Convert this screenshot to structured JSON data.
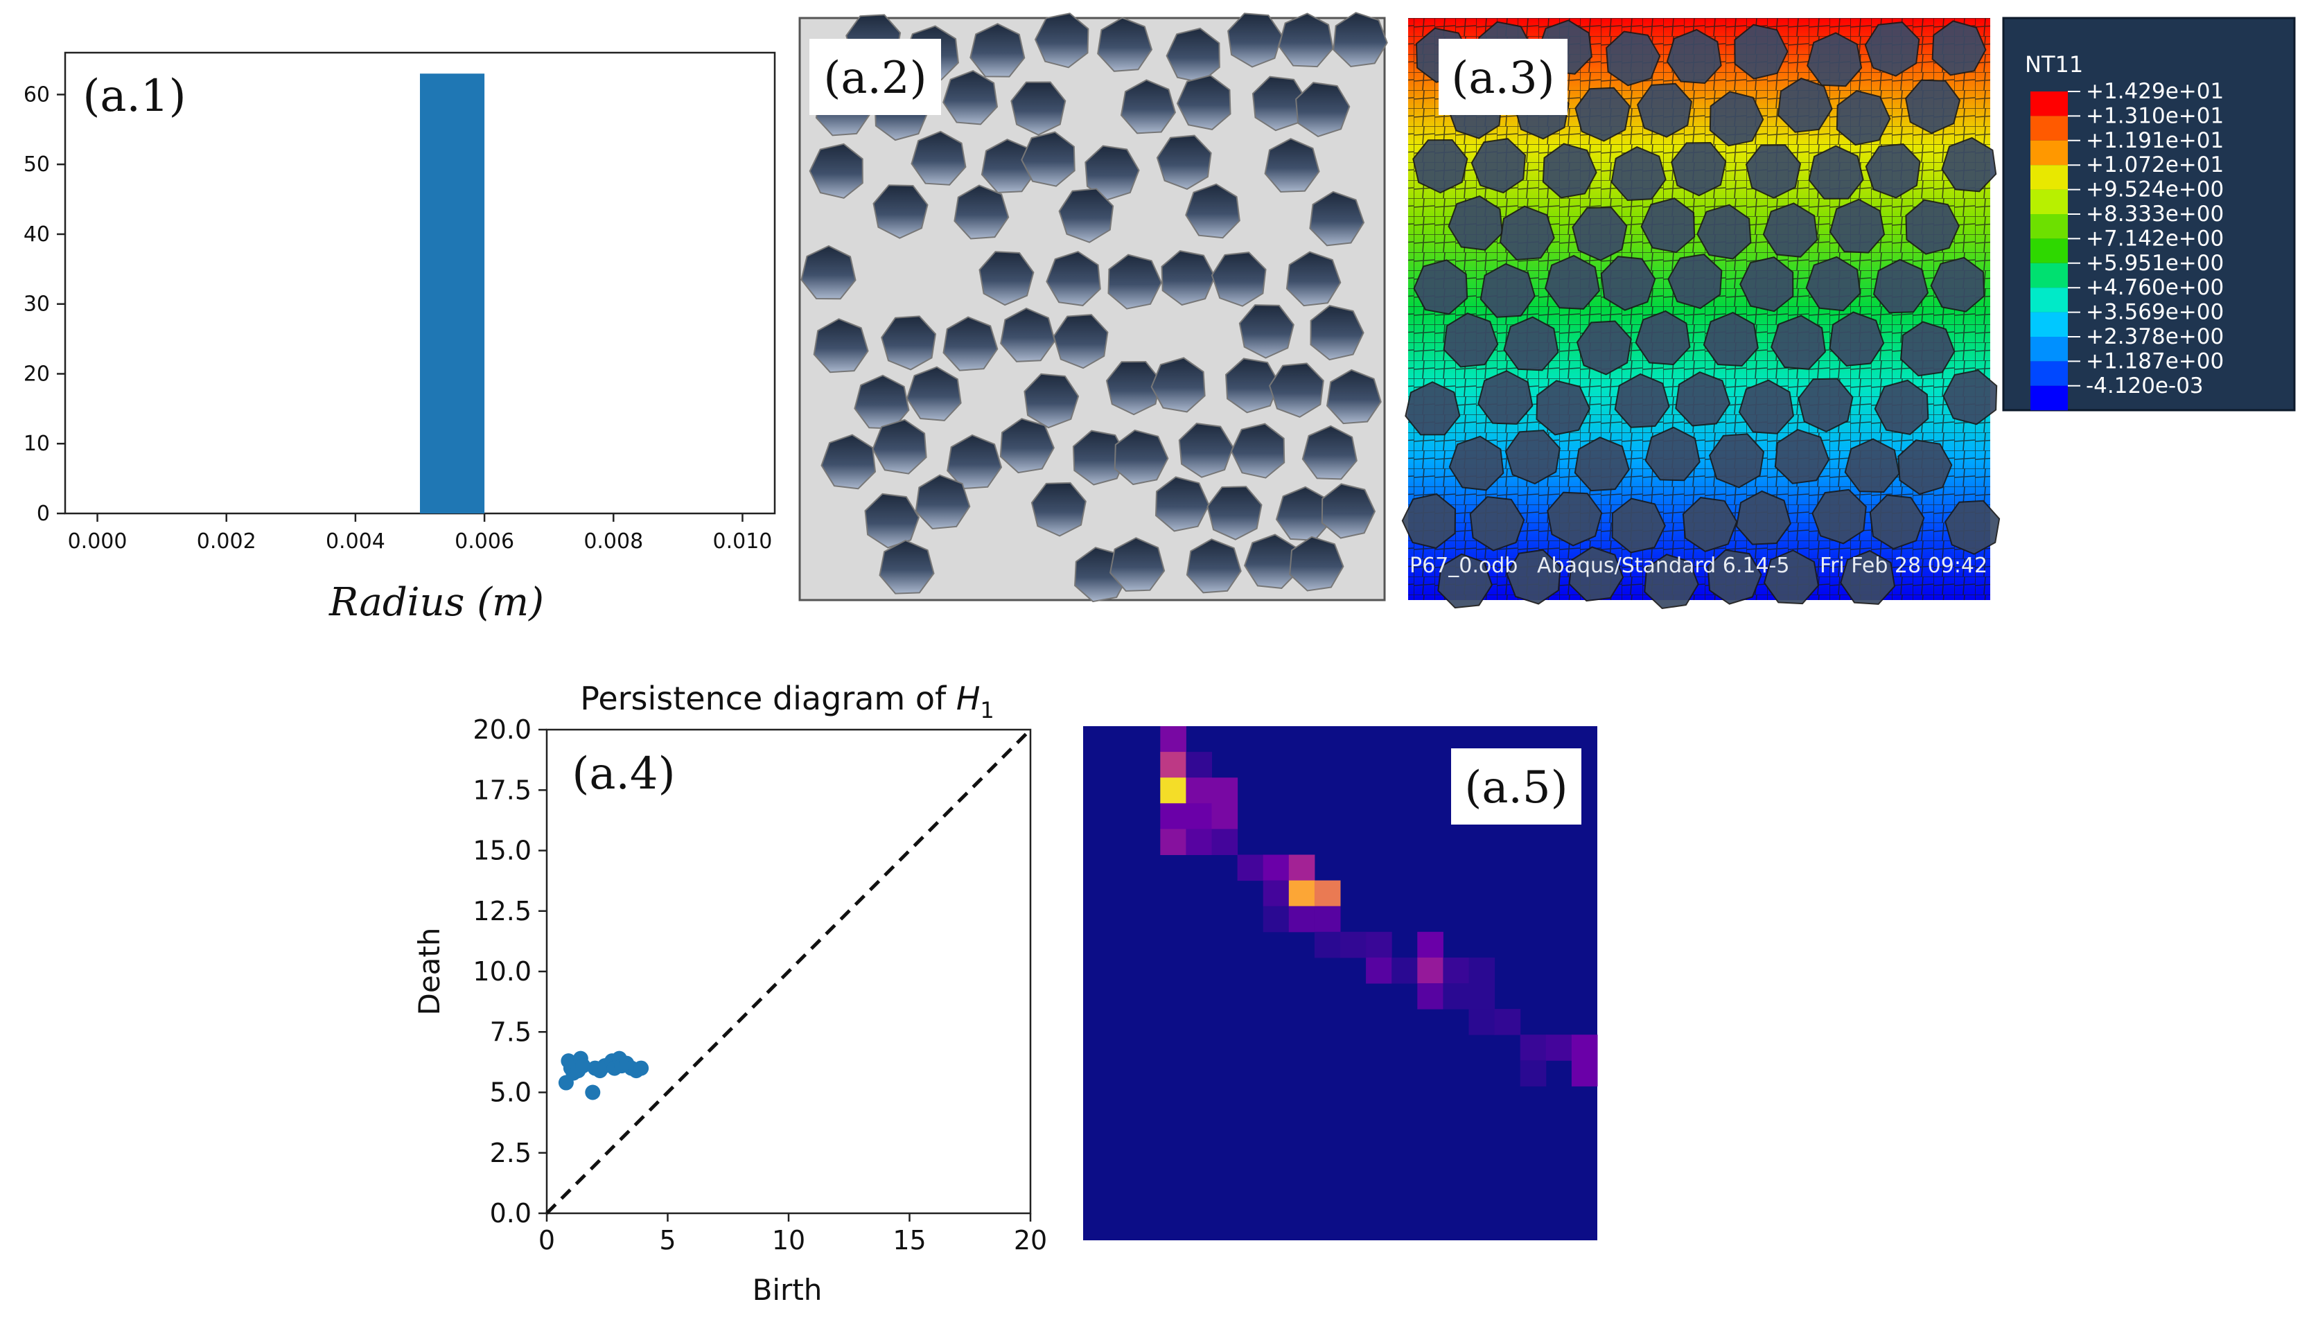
{
  "chart_data": [
    {
      "panel": "(a.1)",
      "type": "bar",
      "xlabel": "Radius (m)",
      "ylabel": "",
      "x_ticks": [
        "0.000",
        "0.002",
        "0.004",
        "0.006",
        "0.008",
        "0.010"
      ],
      "y_ticks": [
        "0",
        "10",
        "20",
        "30",
        "40",
        "50",
        "60"
      ],
      "xlim": [
        -0.0005,
        0.0105
      ],
      "ylim": [
        0,
        66
      ],
      "bins": [
        {
          "start": 0.005,
          "end": 0.006,
          "value": 63
        }
      ],
      "color": "#1f77b4"
    },
    {
      "panel": "(a.2)",
      "type": "image",
      "description_label": "(a.2)"
    },
    {
      "panel": "(a.3)",
      "type": "heatmap",
      "legend_title": "NT11",
      "legend_values": [
        "+1.429e+01",
        "+1.310e+01",
        "+1.191e+01",
        "+1.072e+01",
        "+9.524e+00",
        "+8.333e+00",
        "+7.142e+00",
        "+5.951e+00",
        "+4.760e+00",
        "+3.569e+00",
        "+2.378e+00",
        "+1.187e+00",
        "-4.120e-03"
      ],
      "legend_colors": [
        "#ff0000",
        "#ff5a00",
        "#ff9800",
        "#e8e800",
        "#b8f000",
        "#6de000",
        "#2ed800",
        "#00e070",
        "#00eac8",
        "#00c8ff",
        "#0090ff",
        "#0048ff",
        "#0000ff"
      ],
      "footer": [
        "P67_0.odb",
        "Abaqus/Standard 6.14-5",
        "Fri Feb 28 09:42"
      ]
    },
    {
      "panel": "(a.4)",
      "type": "scatter",
      "title": "Persistence diagram of H1",
      "title_main": "Persistence diagram of ",
      "title_var": "H",
      "title_sub": "1",
      "xlabel": "Birth",
      "ylabel": "Death",
      "xlim": [
        0,
        20
      ],
      "ylim": [
        0,
        20
      ],
      "x_ticks": [
        "0",
        "5",
        "10",
        "15",
        "20"
      ],
      "y_ticks": [
        "0.0",
        "2.5",
        "5.0",
        "7.5",
        "10.0",
        "12.5",
        "15.0",
        "17.5",
        "20.0"
      ],
      "diagonal": true,
      "color": "#1f77b4",
      "points": [
        [
          0.9,
          6.3
        ],
        [
          1.0,
          6.0
        ],
        [
          1.1,
          5.8
        ],
        [
          0.8,
          5.4
        ],
        [
          1.2,
          6.2
        ],
        [
          1.4,
          6.4
        ],
        [
          1.3,
          5.9
        ],
        [
          1.5,
          6.1
        ],
        [
          1.9,
          5.0
        ],
        [
          2.0,
          6.0
        ],
        [
          2.2,
          5.9
        ],
        [
          2.4,
          6.1
        ],
        [
          2.7,
          6.3
        ],
        [
          2.8,
          6.0
        ],
        [
          3.0,
          6.4
        ],
        [
          3.1,
          6.1
        ],
        [
          3.3,
          6.2
        ],
        [
          3.5,
          6.0
        ],
        [
          3.7,
          5.9
        ],
        [
          3.9,
          6.0
        ]
      ]
    },
    {
      "panel": "(a.5)",
      "type": "heatmap",
      "grid_size": [
        20,
        20
      ],
      "cells": [
        [
          3,
          0,
          0.3
        ],
        [
          3,
          1,
          0.55
        ],
        [
          3,
          2,
          0.95
        ],
        [
          3,
          3,
          0.25
        ],
        [
          3,
          4,
          0.35
        ],
        [
          4,
          1,
          0.1
        ],
        [
          4,
          2,
          0.3
        ],
        [
          4,
          3,
          0.25
        ],
        [
          4,
          4,
          0.2
        ],
        [
          5,
          2,
          0.3
        ],
        [
          5,
          3,
          0.3
        ],
        [
          5,
          4,
          0.15
        ],
        [
          6,
          5,
          0.15
        ],
        [
          7,
          5,
          0.25
        ],
        [
          7,
          6,
          0.15
        ],
        [
          7,
          7,
          0.08
        ],
        [
          8,
          5,
          0.45
        ],
        [
          8,
          6,
          0.85
        ],
        [
          8,
          7,
          0.2
        ],
        [
          9,
          6,
          0.75
        ],
        [
          9,
          7,
          0.2
        ],
        [
          9,
          8,
          0.08
        ],
        [
          10,
          8,
          0.1
        ],
        [
          11,
          8,
          0.12
        ],
        [
          11,
          9,
          0.2
        ],
        [
          12,
          9,
          0.08
        ],
        [
          13,
          8,
          0.25
        ],
        [
          13,
          9,
          0.4
        ],
        [
          13,
          10,
          0.2
        ],
        [
          14,
          9,
          0.12
        ],
        [
          14,
          10,
          0.08
        ],
        [
          15,
          9,
          0.08
        ],
        [
          15,
          10,
          0.08
        ],
        [
          15,
          11,
          0.08
        ],
        [
          16,
          11,
          0.1
        ],
        [
          17,
          12,
          0.12
        ],
        [
          17,
          13,
          0.08
        ],
        [
          18,
          12,
          0.15
        ],
        [
          19,
          12,
          0.25
        ],
        [
          19,
          13,
          0.25
        ]
      ]
    }
  ]
}
